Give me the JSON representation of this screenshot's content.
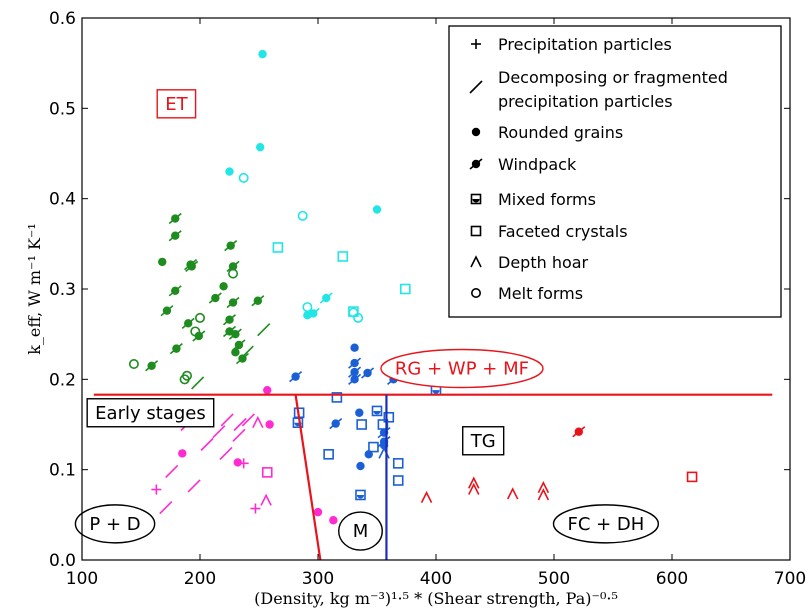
{
  "chart_data": {
    "type": "scatter",
    "xlabel": "(Density, kg m⁻³)¹·⁵ * (Shear strength, Pa)⁻⁰·⁵",
    "ylabel": "k_eff, W m⁻¹ K⁻¹",
    "xlim": [
      100,
      700
    ],
    "ylim": [
      0.0,
      0.6
    ],
    "x_ticks": [
      "100",
      "200",
      "300",
      "400",
      "500",
      "600",
      "700"
    ],
    "y_ticks": [
      "0.0",
      "0.1",
      "0.2",
      "0.3",
      "0.4",
      "0.5",
      "0.6"
    ],
    "grid": false,
    "legend_position": "top-right",
    "legend": [
      {
        "symbol": "plus",
        "label": "Precipitation particles"
      },
      {
        "symbol": "slash",
        "label": "Decomposing or fragmented",
        "label2": "precipitation particles"
      },
      {
        "symbol": "dot",
        "label": "Rounded grains"
      },
      {
        "symbol": "dotslash",
        "label": "Windpack"
      },
      {
        "symbol": "halfdot",
        "label": "Mixed forms"
      },
      {
        "symbol": "square",
        "label": "Faceted crystals"
      },
      {
        "symbol": "caret",
        "label": "Depth hoar"
      },
      {
        "symbol": "circle",
        "label": "Melt forms"
      }
    ],
    "annotations": [
      {
        "text": "ET",
        "x": 180,
        "y": 0.505,
        "color": "#e8141b",
        "box": "rect"
      },
      {
        "text": "RG + WP + MF",
        "x": 422,
        "y": 0.212,
        "color": "#e8141b",
        "box": "ellipse"
      },
      {
        "text": "Early stages",
        "x": 158,
        "y": 0.163,
        "color": "#000000",
        "box": "rect"
      },
      {
        "text": "TG",
        "x": 440,
        "y": 0.132,
        "color": "#000000",
        "box": "rect"
      },
      {
        "text": "P + D",
        "x": 128,
        "y": 0.04,
        "color": "#000000",
        "box": "ellipse"
      },
      {
        "text": "M",
        "x": 336,
        "y": 0.032,
        "color": "#000000",
        "box": "ellipse"
      },
      {
        "text": "FC + DH",
        "x": 544,
        "y": 0.04,
        "color": "#000000",
        "box": "ellipse"
      }
    ],
    "lines": [
      {
        "name": "boundary-horizontal",
        "x": [
          110,
          685
        ],
        "y": [
          0.183,
          0.183
        ],
        "color": "#e8141b"
      },
      {
        "name": "boundary-red-diagonal",
        "x": [
          281,
          302
        ],
        "y": [
          0.183,
          0.0
        ],
        "color": "#e8141b"
      },
      {
        "name": "boundary-blue-vertical",
        "x": [
          358,
          358
        ],
        "y": [
          0.183,
          0.0
        ],
        "color": "#1a2fb8"
      }
    ],
    "series": [
      {
        "group": "green",
        "marker": "dotslash",
        "color": "#1e8c1e",
        "points": [
          [
            179,
            0.378
          ],
          [
            179,
            0.359
          ],
          [
            192,
            0.327
          ],
          [
            193,
            0.325
          ],
          [
            226,
            0.348
          ],
          [
            228,
            0.325
          ],
          [
            179,
            0.298
          ],
          [
            172,
            0.276
          ],
          [
            213,
            0.29
          ],
          [
            228,
            0.285
          ],
          [
            249,
            0.287
          ],
          [
            190,
            0.262
          ],
          [
            225,
            0.266
          ],
          [
            230,
            0.25
          ],
          [
            199,
            0.248
          ],
          [
            225,
            0.253
          ],
          [
            180,
            0.234
          ],
          [
            233,
            0.238
          ],
          [
            236,
            0.223
          ],
          [
            159,
            0.215
          ]
        ]
      },
      {
        "group": "green",
        "marker": "dot",
        "color": "#1e8c1e",
        "points": [
          [
            168,
            0.33
          ],
          [
            220,
            0.303
          ],
          [
            230,
            0.23
          ]
        ]
      },
      {
        "group": "green",
        "marker": "circle",
        "color": "#1e8c1e",
        "points": [
          [
            228,
            0.317
          ],
          [
            200,
            0.268
          ],
          [
            196,
            0.253
          ],
          [
            144,
            0.217
          ],
          [
            189,
            0.204
          ],
          [
            187,
            0.2
          ]
        ]
      },
      {
        "group": "green",
        "marker": "slash",
        "color": "#1e8c1e",
        "points": [
          [
            198,
            0.196
          ],
          [
            240,
            0.23
          ],
          [
            254,
            0.255
          ]
        ]
      },
      {
        "group": "cyan",
        "marker": "dot",
        "color": "#22e6e6",
        "points": [
          [
            253,
            0.56
          ],
          [
            251,
            0.457
          ],
          [
            225,
            0.43
          ],
          [
            350,
            0.388
          ],
          [
            291,
            0.271
          ]
        ]
      },
      {
        "group": "cyan",
        "marker": "circle",
        "color": "#22e6e6",
        "points": [
          [
            237,
            0.423
          ],
          [
            287,
            0.381
          ],
          [
            291,
            0.28
          ],
          [
            334,
            0.268
          ],
          [
            330,
            0.274
          ]
        ]
      },
      {
        "group": "cyan",
        "marker": "square",
        "color": "#22e6e6",
        "points": [
          [
            266,
            0.346
          ],
          [
            321,
            0.336
          ],
          [
            374,
            0.3
          ],
          [
            330,
            0.275
          ]
        ]
      },
      {
        "group": "cyan",
        "marker": "dotslash",
        "color": "#22e6e6",
        "points": [
          [
            307,
            0.29
          ],
          [
            296,
            0.273
          ]
        ]
      },
      {
        "group": "blue",
        "marker": "dot",
        "color": "#1a5fd6",
        "points": [
          [
            331,
            0.235
          ],
          [
            335,
            0.163
          ],
          [
            356,
            0.127
          ],
          [
            336,
            0.104
          ],
          [
            343,
            0.117
          ]
        ]
      },
      {
        "group": "blue",
        "marker": "dotslash",
        "color": "#1a5fd6",
        "points": [
          [
            331,
            0.218
          ],
          [
            331,
            0.208
          ],
          [
            331,
            0.2
          ],
          [
            342,
            0.207
          ],
          [
            364,
            0.2
          ],
          [
            281,
            0.203
          ],
          [
            356,
            0.141
          ],
          [
            356,
            0.131
          ],
          [
            315,
            0.151
          ]
        ]
      },
      {
        "group": "blue",
        "marker": "square",
        "color": "#1a5fd6",
        "points": [
          [
            316,
            0.18
          ],
          [
            284,
            0.163
          ],
          [
            360,
            0.158
          ],
          [
            355,
            0.15
          ],
          [
            337,
            0.15
          ],
          [
            347,
            0.125
          ],
          [
            309,
            0.117
          ],
          [
            368,
            0.107
          ],
          [
            368,
            0.088
          ]
        ]
      },
      {
        "group": "blue",
        "marker": "halfdot",
        "color": "#1a5fd6",
        "points": [
          [
            283,
            0.152
          ],
          [
            350,
            0.165
          ],
          [
            400,
            0.188
          ],
          [
            336,
            0.072
          ]
        ]
      },
      {
        "group": "blue",
        "marker": "caret",
        "color": "#1a5fd6",
        "points": [
          [
            356,
            0.118
          ]
        ]
      },
      {
        "group": "magenta",
        "marker": "dot",
        "color": "#ff2bd1",
        "points": [
          [
            257,
            0.188
          ],
          [
            259,
            0.15
          ],
          [
            185,
            0.118
          ],
          [
            232,
            0.108
          ],
          [
            300,
            0.053
          ],
          [
            313,
            0.044
          ]
        ]
      },
      {
        "group": "magenta",
        "marker": "slash",
        "color": "#ff2bd1",
        "points": [
          [
            181,
            0.172
          ],
          [
            189,
            0.15
          ],
          [
            206,
            0.128
          ],
          [
            216,
            0.142
          ],
          [
            223,
            0.155
          ],
          [
            233,
            0.138
          ],
          [
            241,
            0.155
          ],
          [
            222,
            0.118
          ],
          [
            234,
            0.15
          ],
          [
            176,
            0.098
          ],
          [
            195,
            0.082
          ],
          [
            171,
            0.058
          ]
        ]
      },
      {
        "group": "magenta",
        "marker": "plus",
        "color": "#ff2bd1",
        "points": [
          [
            163,
            0.078
          ],
          [
            247,
            0.057
          ],
          [
            237,
            0.107
          ]
        ]
      },
      {
        "group": "magenta",
        "marker": "caret",
        "color": "#ff2bd1",
        "points": [
          [
            249,
            0.152
          ],
          [
            256,
            0.066
          ]
        ]
      },
      {
        "group": "magenta",
        "marker": "square",
        "color": "#ff2bd1",
        "points": [
          [
            257,
            0.097
          ]
        ]
      },
      {
        "group": "red",
        "marker": "dotslash",
        "color": "#e8141b",
        "points": [
          [
            521,
            0.142
          ]
        ]
      },
      {
        "group": "red",
        "marker": "square",
        "color": "#e8141b",
        "points": [
          [
            617,
            0.092
          ]
        ]
      },
      {
        "group": "red",
        "marker": "caret",
        "color": "#e8141b",
        "points": [
          [
            392,
            0.069
          ],
          [
            432,
            0.085
          ],
          [
            432,
            0.078
          ],
          [
            465,
            0.073
          ],
          [
            491,
            0.08
          ],
          [
            491,
            0.072
          ]
        ]
      }
    ]
  }
}
